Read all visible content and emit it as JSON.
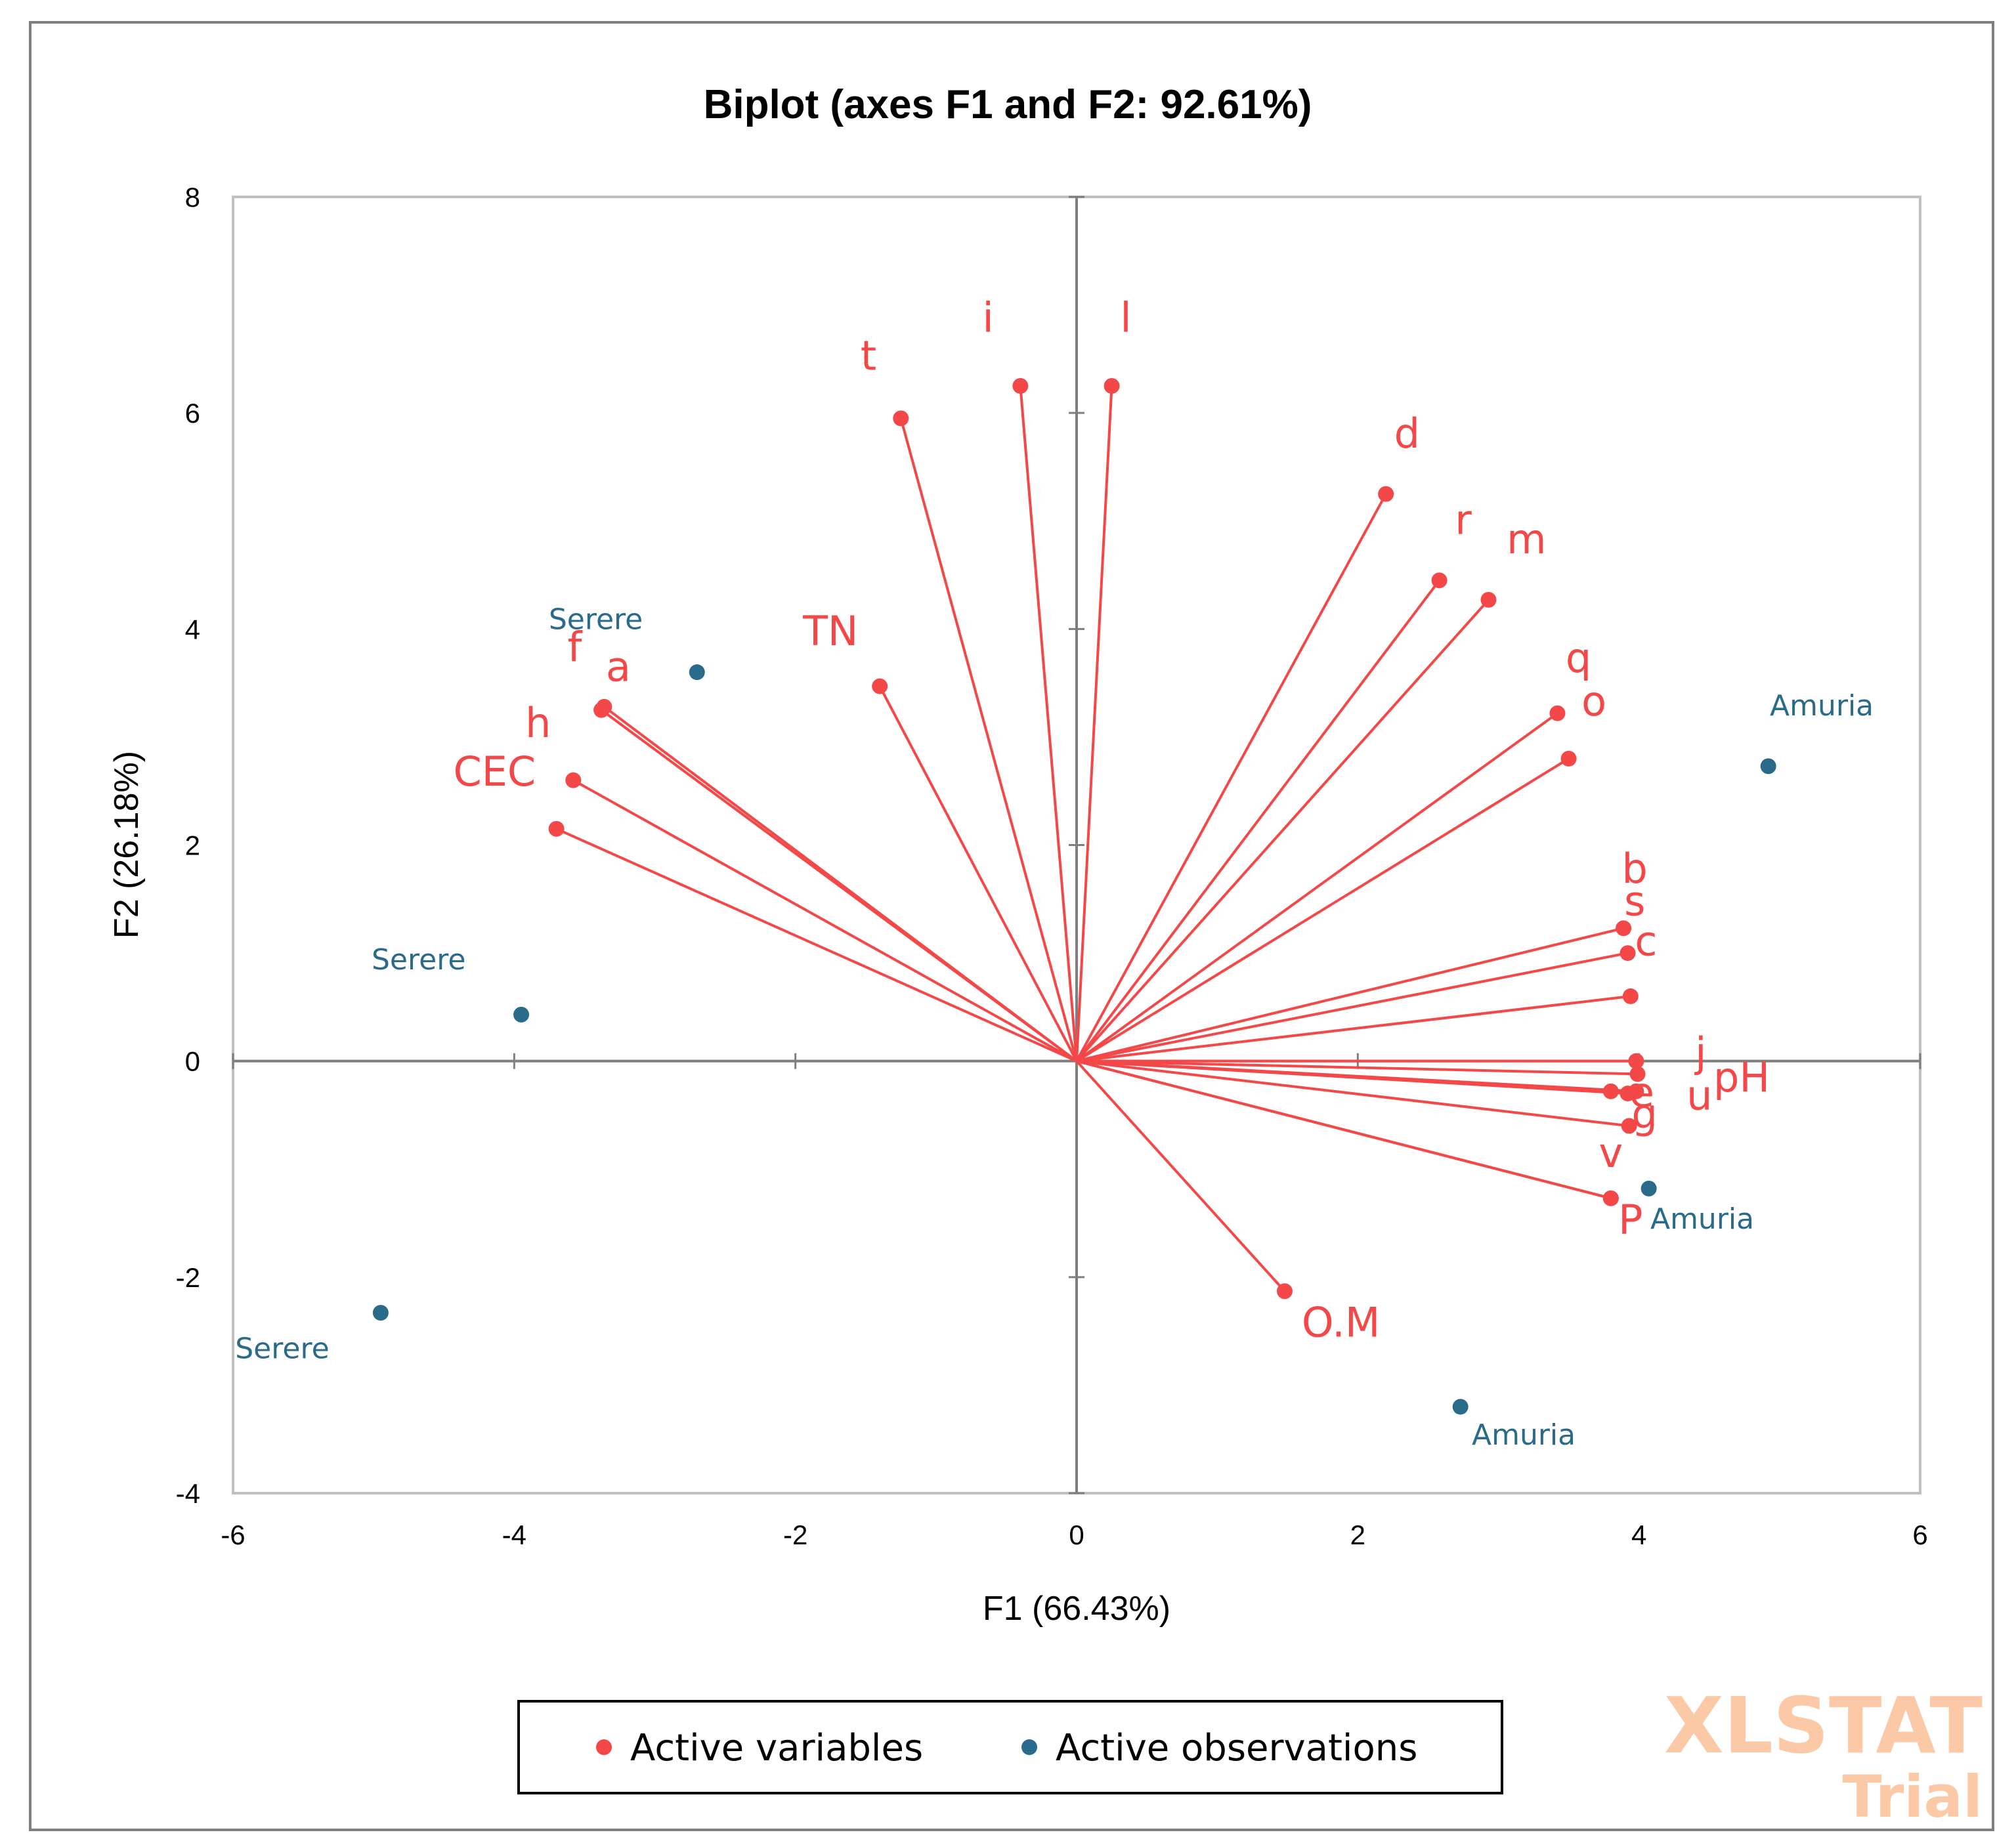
{
  "chart_data": {
    "type": "scatter",
    "title": "Biplot (axes F1 and F2: 92.61%)",
    "xlabel": "F1 (66.43%)",
    "ylabel": "F2 (26.18%)",
    "xlim": [
      -6,
      6
    ],
    "ylim": [
      -4,
      8
    ],
    "x_ticks": [
      "-6",
      "-4",
      "-2",
      "0",
      "2",
      "4",
      "6"
    ],
    "y_ticks": [
      "-4",
      "-2",
      "0",
      "2",
      "4",
      "6",
      "8"
    ],
    "colors": {
      "variables": "#F44848",
      "observations": "#2A6B8A"
    },
    "series": [
      {
        "name": "Active variables",
        "points": [
          {
            "label": "l",
            "x": 0.25,
            "y": 6.25,
            "lx": 0.35,
            "ly": 6.75
          },
          {
            "label": "i",
            "x": -0.4,
            "y": 6.25,
            "lx": -0.63,
            "ly": 6.75
          },
          {
            "label": "t",
            "x": -1.25,
            "y": 5.95,
            "lx": -1.48,
            "ly": 6.4
          },
          {
            "label": "TN",
            "x": -1.4,
            "y": 3.47,
            "lx": -1.75,
            "ly": 3.85
          },
          {
            "label": "d",
            "x": 2.2,
            "y": 5.25,
            "lx": 2.35,
            "ly": 5.68
          },
          {
            "label": "r",
            "x": 2.58,
            "y": 4.45,
            "lx": 2.75,
            "ly": 4.88
          },
          {
            "label": "m",
            "x": 2.93,
            "y": 4.27,
            "lx": 3.2,
            "ly": 4.7
          },
          {
            "label": "q",
            "x": 3.42,
            "y": 3.22,
            "lx": 3.57,
            "ly": 3.6
          },
          {
            "label": "o",
            "x": 3.5,
            "y": 2.8,
            "lx": 3.68,
            "ly": 3.2
          },
          {
            "label": "f",
            "x": -3.38,
            "y": 3.25,
            "lx": -3.57,
            "ly": 3.7
          },
          {
            "label": "a",
            "x": -3.36,
            "y": 3.28,
            "lx": -3.26,
            "ly": 3.52
          },
          {
            "label": "h",
            "x": -3.58,
            "y": 2.6,
            "lx": -3.83,
            "ly": 3.0
          },
          {
            "label": "CEC",
            "x": -3.7,
            "y": 2.15,
            "lx": -4.14,
            "ly": 2.55
          },
          {
            "label": "b",
            "x": 3.89,
            "y": 1.23,
            "lx": 3.97,
            "ly": 1.65
          },
          {
            "label": "s",
            "x": 3.92,
            "y": 1.0,
            "lx": 3.97,
            "ly": 1.35
          },
          {
            "label": "c",
            "x": 3.94,
            "y": 0.6,
            "lx": 4.05,
            "ly": 0.98
          },
          {
            "label": "j",
            "x": 3.98,
            "y": 0.0,
            "lx": 4.44,
            "ly": -0.05
          },
          {
            "label": "pH",
            "x": 3.99,
            "y": -0.12,
            "lx": 4.73,
            "ly": -0.28
          },
          {
            "label": "e",
            "x": 3.98,
            "y": -0.28,
            "lx": 4.02,
            "ly": -0.42
          },
          {
            "label": "u",
            "x": 3.92,
            "y": -0.3,
            "lx": 4.43,
            "ly": -0.45
          },
          {
            "label": "",
            "x": 3.8,
            "y": -0.28,
            "lx": 3.8,
            "ly": -0.28
          },
          {
            "label": "g",
            "x": 3.93,
            "y": -0.6,
            "lx": 4.04,
            "ly": -0.62
          },
          {
            "label": "v",
            "x": 3.8,
            "y": -1.27,
            "lx": 3.8,
            "ly": -0.98
          },
          {
            "label": "P",
            "x": 3.8,
            "y": -1.27,
            "lx": 3.94,
            "ly": -1.6
          },
          {
            "label": "O.M",
            "x": 1.48,
            "y": -2.13,
            "lx": 1.88,
            "ly": -2.55
          }
        ]
      },
      {
        "name": "Active observations",
        "points": [
          {
            "label": "Serere",
            "x": -2.7,
            "y": 3.6,
            "lx": -3.42,
            "ly": 4.0
          },
          {
            "label": "Serere",
            "x": -3.95,
            "y": 0.43,
            "lx": -4.68,
            "ly": 0.85
          },
          {
            "label": "Serere",
            "x": -4.95,
            "y": -2.33,
            "lx": -5.65,
            "ly": -2.75
          },
          {
            "label": "Amuria",
            "x": 4.92,
            "y": 2.73,
            "lx": 5.3,
            "ly": 3.2
          },
          {
            "label": "Amuria",
            "x": 4.07,
            "y": -1.18,
            "lx": 4.45,
            "ly": -1.55
          },
          {
            "label": "Amuria",
            "x": 2.73,
            "y": -3.2,
            "lx": 3.18,
            "ly": -3.55
          }
        ]
      }
    ],
    "legend": {
      "position": "bottom",
      "items": [
        "Active variables",
        "Active observations"
      ]
    }
  },
  "watermark": {
    "line1": "XLSTAT",
    "line2": "Trial"
  }
}
